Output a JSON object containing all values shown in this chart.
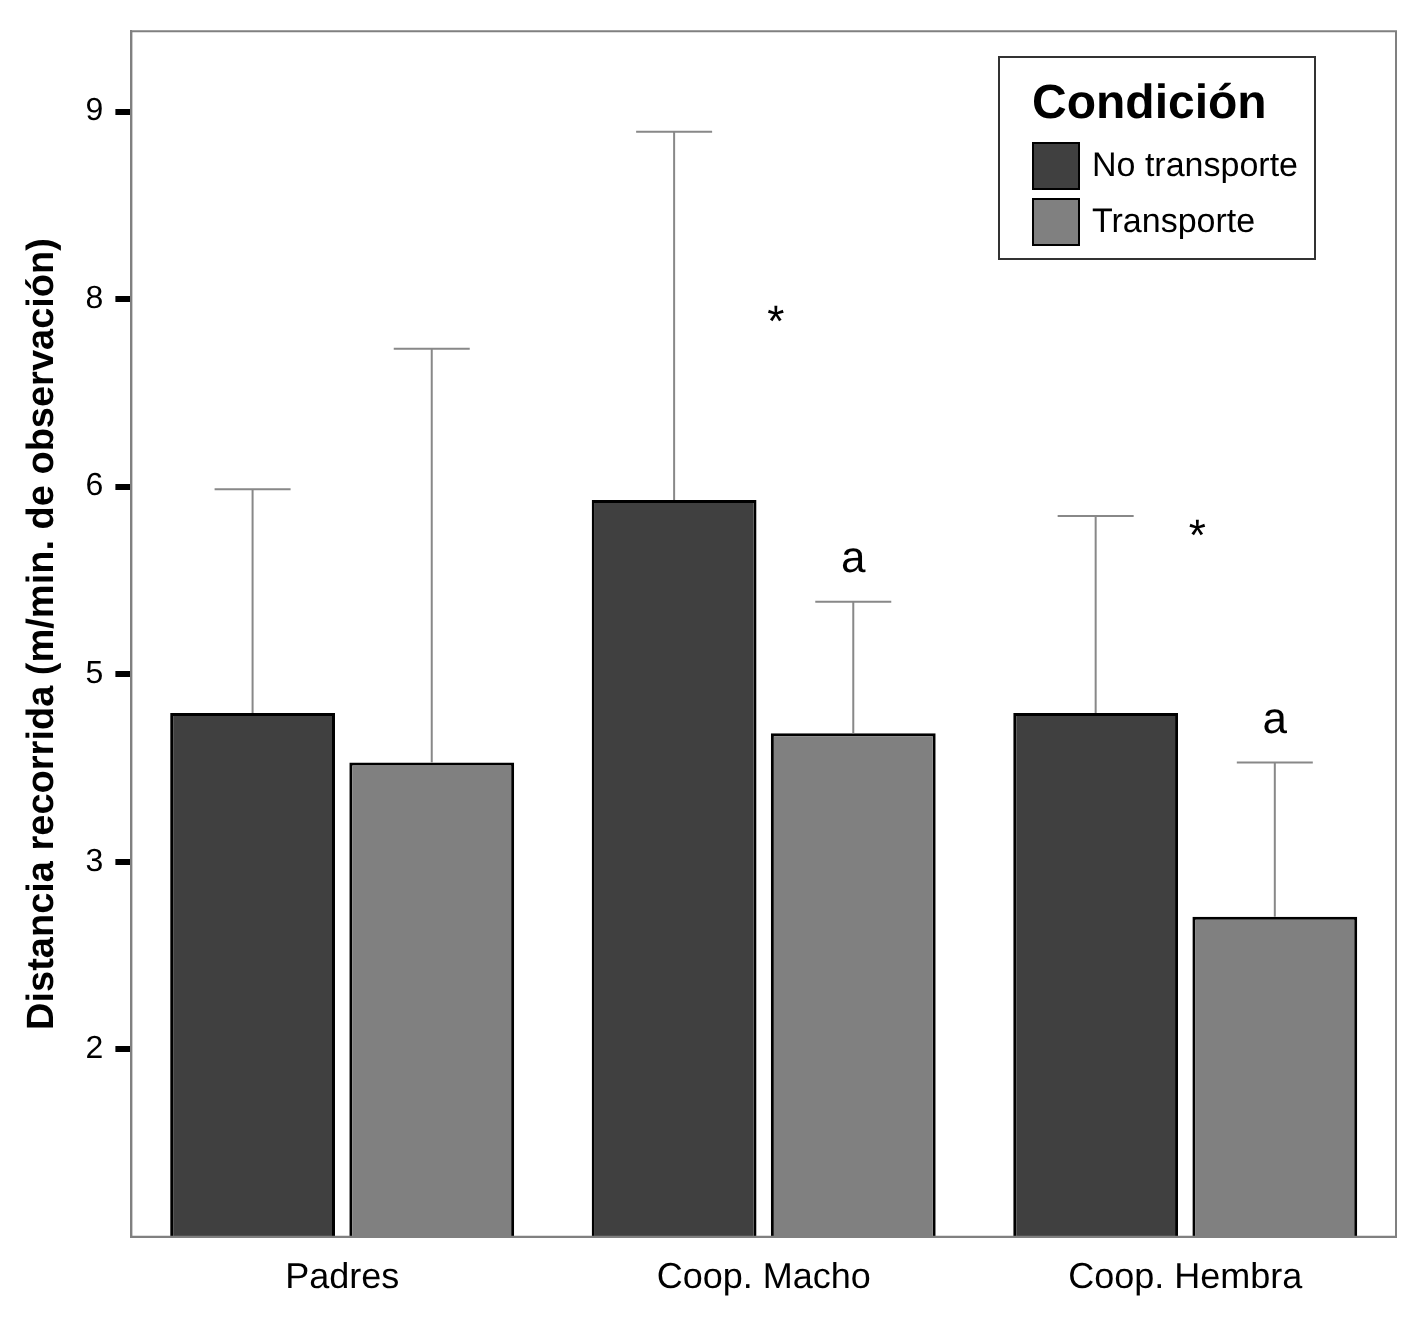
{
  "chart_data": {
    "type": "bar",
    "ylabel": "Distancia recorrida (m/min. de observación)",
    "legend_title": "Condición",
    "legend": "top right",
    "grid": false,
    "categories": [
      "Padres",
      "Coop. Macho",
      "Coop. Hembra"
    ],
    "series": [
      {
        "name": "No transporte",
        "color": "#404040",
        "values": [
          4.51,
          6.1,
          4.51
        ],
        "errors": [
          [
            4.51,
            6.18
          ],
          [
            6.1,
            8.85
          ],
          [
            4.51,
            5.98
          ]
        ]
      },
      {
        "name": "Transporte",
        "color": "#808080",
        "values": [
          4.14,
          4.36,
          2.99
        ],
        "errors": [
          [
            4.14,
            7.23
          ],
          [
            4.36,
            5.34
          ],
          [
            2.99,
            4.14
          ]
        ]
      }
    ],
    "ylim": [
      0.6,
      9.6
    ],
    "yticks": [
      {
        "value": 2,
        "label": "2"
      },
      {
        "value": 3.4,
        "label": "3"
      },
      {
        "value": 4.8,
        "label": "5"
      },
      {
        "value": 6.2,
        "label": "6"
      },
      {
        "value": 7.6,
        "label": "8"
      },
      9
    ],
    "annotations": [
      "*",
      "a",
      "*",
      "a"
    ]
  }
}
